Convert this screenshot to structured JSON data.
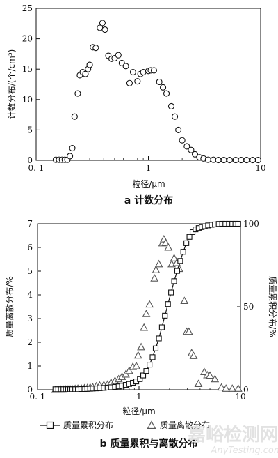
{
  "chart_data": [
    {
      "type": "scatter",
      "caption": "a 计数分布",
      "xlabel": "粒径/μm",
      "ylabel": "计数分布/(个/cm³)",
      "xscale": "log",
      "xlim": [
        0.1,
        10
      ],
      "ylim": [
        0,
        25
      ],
      "x_ticks": [
        0.1,
        1,
        10
      ],
      "x_tick_labels": [
        "0. 1",
        "1",
        "10"
      ],
      "y_ticks": [
        0,
        5,
        10,
        15,
        20,
        25
      ],
      "series": [
        {
          "marker": "circle",
          "points": [
            [
              0.15,
              0.1
            ],
            [
              0.16,
              0.1
            ],
            [
              0.17,
              0.1
            ],
            [
              0.18,
              0.1
            ],
            [
              0.19,
              0.1
            ],
            [
              0.2,
              0.7
            ],
            [
              0.21,
              2.0
            ],
            [
              0.22,
              7.2
            ],
            [
              0.235,
              11
            ],
            [
              0.245,
              14
            ],
            [
              0.26,
              14.5
            ],
            [
              0.275,
              14.2
            ],
            [
              0.29,
              15
            ],
            [
              0.3,
              15.7
            ],
            [
              0.32,
              18.6
            ],
            [
              0.34,
              18.5
            ],
            [
              0.37,
              21.8
            ],
            [
              0.39,
              22.6
            ],
            [
              0.41,
              21.5
            ],
            [
              0.44,
              17.2
            ],
            [
              0.47,
              16.7
            ],
            [
              0.5,
              16.8
            ],
            [
              0.54,
              17.3
            ],
            [
              0.58,
              16
            ],
            [
              0.63,
              15.5
            ],
            [
              0.68,
              12.7
            ],
            [
              0.73,
              14.5
            ],
            [
              0.8,
              13
            ],
            [
              0.85,
              14.2
            ],
            [
              0.9,
              14.5
            ],
            [
              1.0,
              14.7
            ],
            [
              1.05,
              14.8
            ],
            [
              1.12,
              14.8
            ],
            [
              1.25,
              12.9
            ],
            [
              1.35,
              12.0
            ],
            [
              1.45,
              11.0
            ],
            [
              1.6,
              8.9
            ],
            [
              1.72,
              7.2
            ],
            [
              1.85,
              5
            ],
            [
              2.0,
              3.3
            ],
            [
              2.2,
              2.3
            ],
            [
              2.4,
              1.7
            ],
            [
              2.6,
              1.0
            ],
            [
              2.85,
              0.5
            ],
            [
              3.1,
              0.3
            ],
            [
              3.4,
              0.1
            ],
            [
              3.8,
              0.1
            ],
            [
              4.2,
              0.05
            ],
            [
              4.7,
              0.05
            ],
            [
              5.3,
              0.05
            ],
            [
              6,
              0.05
            ],
            [
              6.7,
              0.05
            ],
            [
              7.5,
              0.05
            ],
            [
              8.5,
              0.05
            ],
            [
              9.5,
              0.05
            ]
          ]
        }
      ]
    },
    {
      "type": "line",
      "caption": "b 质量累积与离散分布",
      "xlabel": "粒径/μm",
      "ylabel": "质量离散分布/%",
      "y2label": "质量累积分布/%",
      "xscale": "log",
      "xlim": [
        0.1,
        10
      ],
      "ylim": [
        0,
        7
      ],
      "y2lim": [
        0,
        100
      ],
      "x_ticks": [
        0.1,
        1,
        10
      ],
      "x_tick_labels": [
        "0. 1",
        "1",
        "10"
      ],
      "y_ticks": [
        0,
        1,
        2,
        3,
        4,
        5,
        6,
        7
      ],
      "y2_ticks": [
        0,
        50,
        100
      ],
      "legend": "bottom",
      "series": [
        {
          "name": "质量累积分布",
          "marker": "square",
          "axis": "right",
          "points": [
            [
              0.15,
              0.3
            ],
            [
              0.16,
              0.3
            ],
            [
              0.17,
              0.3
            ],
            [
              0.18,
              0.3
            ],
            [
              0.19,
              0.3
            ],
            [
              0.2,
              0.3
            ],
            [
              0.21,
              0.3
            ],
            [
              0.22,
              0.3
            ],
            [
              0.235,
              0.3
            ],
            [
              0.25,
              0.3
            ],
            [
              0.27,
              0.4
            ],
            [
              0.29,
              0.4
            ],
            [
              0.31,
              0.5
            ],
            [
              0.33,
              0.6
            ],
            [
              0.35,
              0.7
            ],
            [
              0.38,
              0.8
            ],
            [
              0.41,
              0.9
            ],
            [
              0.45,
              1.1
            ],
            [
              0.49,
              1.3
            ],
            [
              0.53,
              1.5
            ],
            [
              0.58,
              1.7
            ],
            [
              0.63,
              2.0
            ],
            [
              0.68,
              2.4
            ],
            [
              0.74,
              2.9
            ],
            [
              0.8,
              3.5
            ],
            [
              0.87,
              4.2
            ],
            [
              0.94,
              5.0
            ],
            [
              1.02,
              6.4
            ],
            [
              1.1,
              8.6
            ],
            [
              1.18,
              11.3
            ],
            [
              1.27,
              15.1
            ],
            [
              1.36,
              19.6
            ],
            [
              1.46,
              24.9
            ],
            [
              1.57,
              30.9
            ],
            [
              1.68,
              37.6
            ],
            [
              1.8,
              44.6
            ],
            [
              1.93,
              51.6
            ],
            [
              2.07,
              58.6
            ],
            [
              2.22,
              65.4
            ],
            [
              2.38,
              71.6
            ],
            [
              2.55,
              77.6
            ],
            [
              2.73,
              83.1
            ],
            [
              2.93,
              88.3
            ],
            [
              3.14,
              92.1
            ],
            [
              3.37,
              95.0
            ],
            [
              3.61,
              96.6
            ],
            [
              3.87,
              97.4
            ],
            [
              4.15,
              98.0
            ],
            [
              4.45,
              98.5
            ],
            [
              4.8,
              99.0
            ],
            [
              5.2,
              99.4
            ],
            [
              5.6,
              99.6
            ],
            [
              6.1,
              99.9
            ],
            [
              6.6,
              100
            ],
            [
              7.1,
              100
            ],
            [
              7.7,
              100
            ],
            [
              8.3,
              100
            ],
            [
              8.9,
              100
            ],
            [
              9.5,
              100
            ]
          ]
        },
        {
          "name": "质量离散分布",
          "marker": "triangle",
          "axis": "left",
          "points": [
            [
              0.15,
              0
            ],
            [
              0.16,
              0.01
            ],
            [
              0.17,
              0.01
            ],
            [
              0.18,
              0.01
            ],
            [
              0.19,
              0.02
            ],
            [
              0.2,
              0.02
            ],
            [
              0.21,
              0.02
            ],
            [
              0.22,
              0.03
            ],
            [
              0.235,
              0.04
            ],
            [
              0.25,
              0.05
            ],
            [
              0.27,
              0.06
            ],
            [
              0.29,
              0.07
            ],
            [
              0.31,
              0.08
            ],
            [
              0.33,
              0.1
            ],
            [
              0.35,
              0.11
            ],
            [
              0.38,
              0.15
            ],
            [
              0.41,
              0.18
            ],
            [
              0.45,
              0.2
            ],
            [
              0.49,
              0.22
            ],
            [
              0.53,
              0.3
            ],
            [
              0.58,
              0.38
            ],
            [
              0.63,
              0.45
            ],
            [
              0.68,
              0.55
            ],
            [
              0.74,
              0.65
            ],
            [
              0.8,
              0.8
            ],
            [
              0.87,
              0.97
            ],
            [
              0.94,
              1.0
            ],
            [
              0.98,
              1.45
            ],
            [
              1.05,
              1.8
            ],
            [
              1.12,
              2.62
            ],
            [
              1.18,
              3.2
            ],
            [
              1.27,
              3.6
            ],
            [
              1.42,
              4.7
            ],
            [
              1.47,
              5.05
            ],
            [
              1.57,
              5.3
            ],
            [
              1.7,
              6.18
            ],
            [
              1.76,
              6.35
            ],
            [
              1.83,
              6.2
            ],
            [
              1.95,
              6.0
            ],
            [
              2.1,
              5.3
            ],
            [
              2.22,
              5.55
            ],
            [
              2.35,
              5.35
            ],
            [
              2.49,
              5.1
            ],
            [
              2.8,
              3.75
            ],
            [
              2.95,
              2.45
            ],
            [
              3.1,
              2.45
            ],
            [
              3.3,
              1.55
            ],
            [
              3.45,
              1.43
            ],
            [
              3.85,
              0.25
            ],
            [
              4.4,
              0.75
            ],
            [
              4.7,
              0.62
            ],
            [
              5.0,
              0.6
            ],
            [
              5.6,
              0.45
            ],
            [
              6.5,
              0.1
            ],
            [
              7.2,
              0.05
            ],
            [
              8.3,
              0.05
            ],
            [
              9.5,
              0.05
            ]
          ]
        }
      ]
    }
  ],
  "watermark": {
    "main": "嘉峪检测网",
    "sub": "AnyTesting.com"
  }
}
